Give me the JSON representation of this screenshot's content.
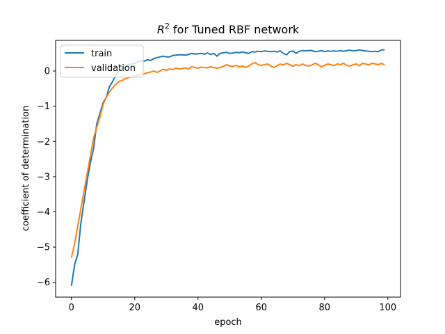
{
  "chart_data": {
    "type": "line",
    "title_main": "R",
    "title_sup": "2",
    "title_rest": " for Tuned RBF network",
    "xlabel": "epoch",
    "ylabel": "coefficient of determination",
    "xlim": [
      -5,
      104
    ],
    "ylim": [
      -6.42,
      0.87
    ],
    "xticks": [
      0,
      20,
      40,
      60,
      80,
      100
    ],
    "yticks": [
      -6,
      -5,
      -4,
      -3,
      -2,
      -1,
      0
    ],
    "xtick_labels": [
      "0",
      "20",
      "40",
      "60",
      "80",
      "100"
    ],
    "ytick_labels": [
      "−6",
      "−5",
      "−4",
      "−3",
      "−2",
      "−1",
      "0"
    ],
    "grid": false,
    "legend_position": "upper-left",
    "series": [
      {
        "name": "train",
        "color": "#1f77b4",
        "values": [
          -6.1,
          -5.5,
          -5.2,
          -4.3,
          -3.7,
          -3.1,
          -2.6,
          -2.2,
          -1.5,
          -1.2,
          -0.9,
          -0.75,
          -0.45,
          -0.3,
          -0.12,
          0.0,
          0.08,
          0.12,
          0.18,
          0.2,
          0.22,
          0.26,
          0.3,
          0.28,
          0.32,
          0.3,
          0.35,
          0.38,
          0.4,
          0.42,
          0.4,
          0.4,
          0.44,
          0.45,
          0.46,
          0.46,
          0.45,
          0.47,
          0.5,
          0.48,
          0.49,
          0.5,
          0.48,
          0.51,
          0.47,
          0.5,
          0.42,
          0.5,
          0.52,
          0.53,
          0.5,
          0.51,
          0.53,
          0.52,
          0.54,
          0.52,
          0.5,
          0.55,
          0.54,
          0.56,
          0.55,
          0.57,
          0.56,
          0.55,
          0.56,
          0.54,
          0.57,
          0.5,
          0.46,
          0.55,
          0.57,
          0.5,
          0.56,
          0.58,
          0.57,
          0.58,
          0.58,
          0.55,
          0.56,
          0.58,
          0.55,
          0.57,
          0.56,
          0.57,
          0.56,
          0.58,
          0.56,
          0.58,
          0.59,
          0.57,
          0.58,
          0.6,
          0.58,
          0.57,
          0.56,
          0.55,
          0.56,
          0.55,
          0.6,
          0.6
        ]
      },
      {
        "name": "validation",
        "color": "#ff7f0e",
        "values": [
          -5.3,
          -4.9,
          -4.4,
          -3.9,
          -3.4,
          -2.9,
          -2.4,
          -1.9,
          -1.6,
          -1.3,
          -0.95,
          -0.75,
          -0.6,
          -0.48,
          -0.38,
          -0.3,
          -0.27,
          -0.22,
          -0.19,
          -0.16,
          -0.14,
          -0.12,
          -0.1,
          -0.08,
          -0.05,
          -0.03,
          0.0,
          -0.04,
          0.0,
          0.05,
          0.02,
          0.06,
          0.04,
          0.08,
          0.06,
          0.07,
          0.09,
          0.06,
          0.12,
          0.1,
          0.08,
          0.11,
          0.1,
          0.09,
          0.12,
          0.1,
          0.08,
          0.1,
          0.13,
          0.18,
          0.14,
          0.13,
          0.16,
          0.12,
          0.14,
          0.1,
          0.14,
          0.2,
          0.24,
          0.18,
          0.16,
          0.18,
          0.2,
          0.14,
          0.1,
          0.15,
          0.2,
          0.17,
          0.22,
          0.18,
          0.13,
          0.18,
          0.15,
          0.2,
          0.16,
          0.14,
          0.17,
          0.22,
          0.18,
          0.12,
          0.16,
          0.2,
          0.18,
          0.15,
          0.2,
          0.18,
          0.22,
          0.16,
          0.14,
          0.18,
          0.2,
          0.15,
          0.22,
          0.2,
          0.17,
          0.22,
          0.2,
          0.18,
          0.22,
          0.17
        ]
      }
    ]
  }
}
